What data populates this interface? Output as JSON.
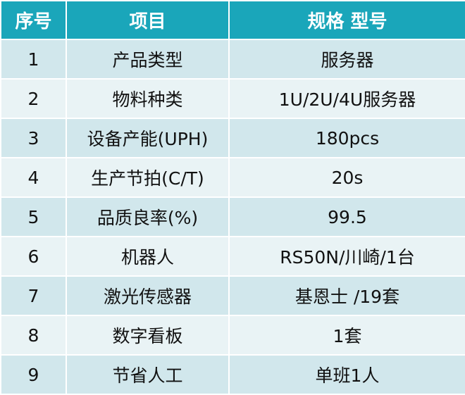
{
  "table": {
    "headers": [
      "序号",
      "项目",
      "规格 型号"
    ],
    "rows": [
      {
        "no": "1",
        "item": "产品类型",
        "spec": "服务器"
      },
      {
        "no": "2",
        "item": "物料种类",
        "spec": "1U/2U/4U服务器"
      },
      {
        "no": "3",
        "item": "设备产能(UPH)",
        "spec": "180pcs"
      },
      {
        "no": "4",
        "item": "生产节拍(C/T)",
        "spec": "20s"
      },
      {
        "no": "5",
        "item": "品质良率(%)",
        "spec": "99.5"
      },
      {
        "no": "6",
        "item": "机器人",
        "spec": "RS50N/川崎/1台"
      },
      {
        "no": "7",
        "item": "激光传感器",
        "spec": "基恩士 /19套"
      },
      {
        "no": "8",
        "item": "数字看板",
        "spec": "1套"
      },
      {
        "no": "9",
        "item": "节省人工",
        "spec": "单班1人"
      }
    ]
  },
  "colors": {
    "header_bg": "#1aa6ba",
    "header_text": "#ffffff",
    "row_odd_bg": "#d1e7ec",
    "row_even_bg": "#e9f3f5"
  }
}
